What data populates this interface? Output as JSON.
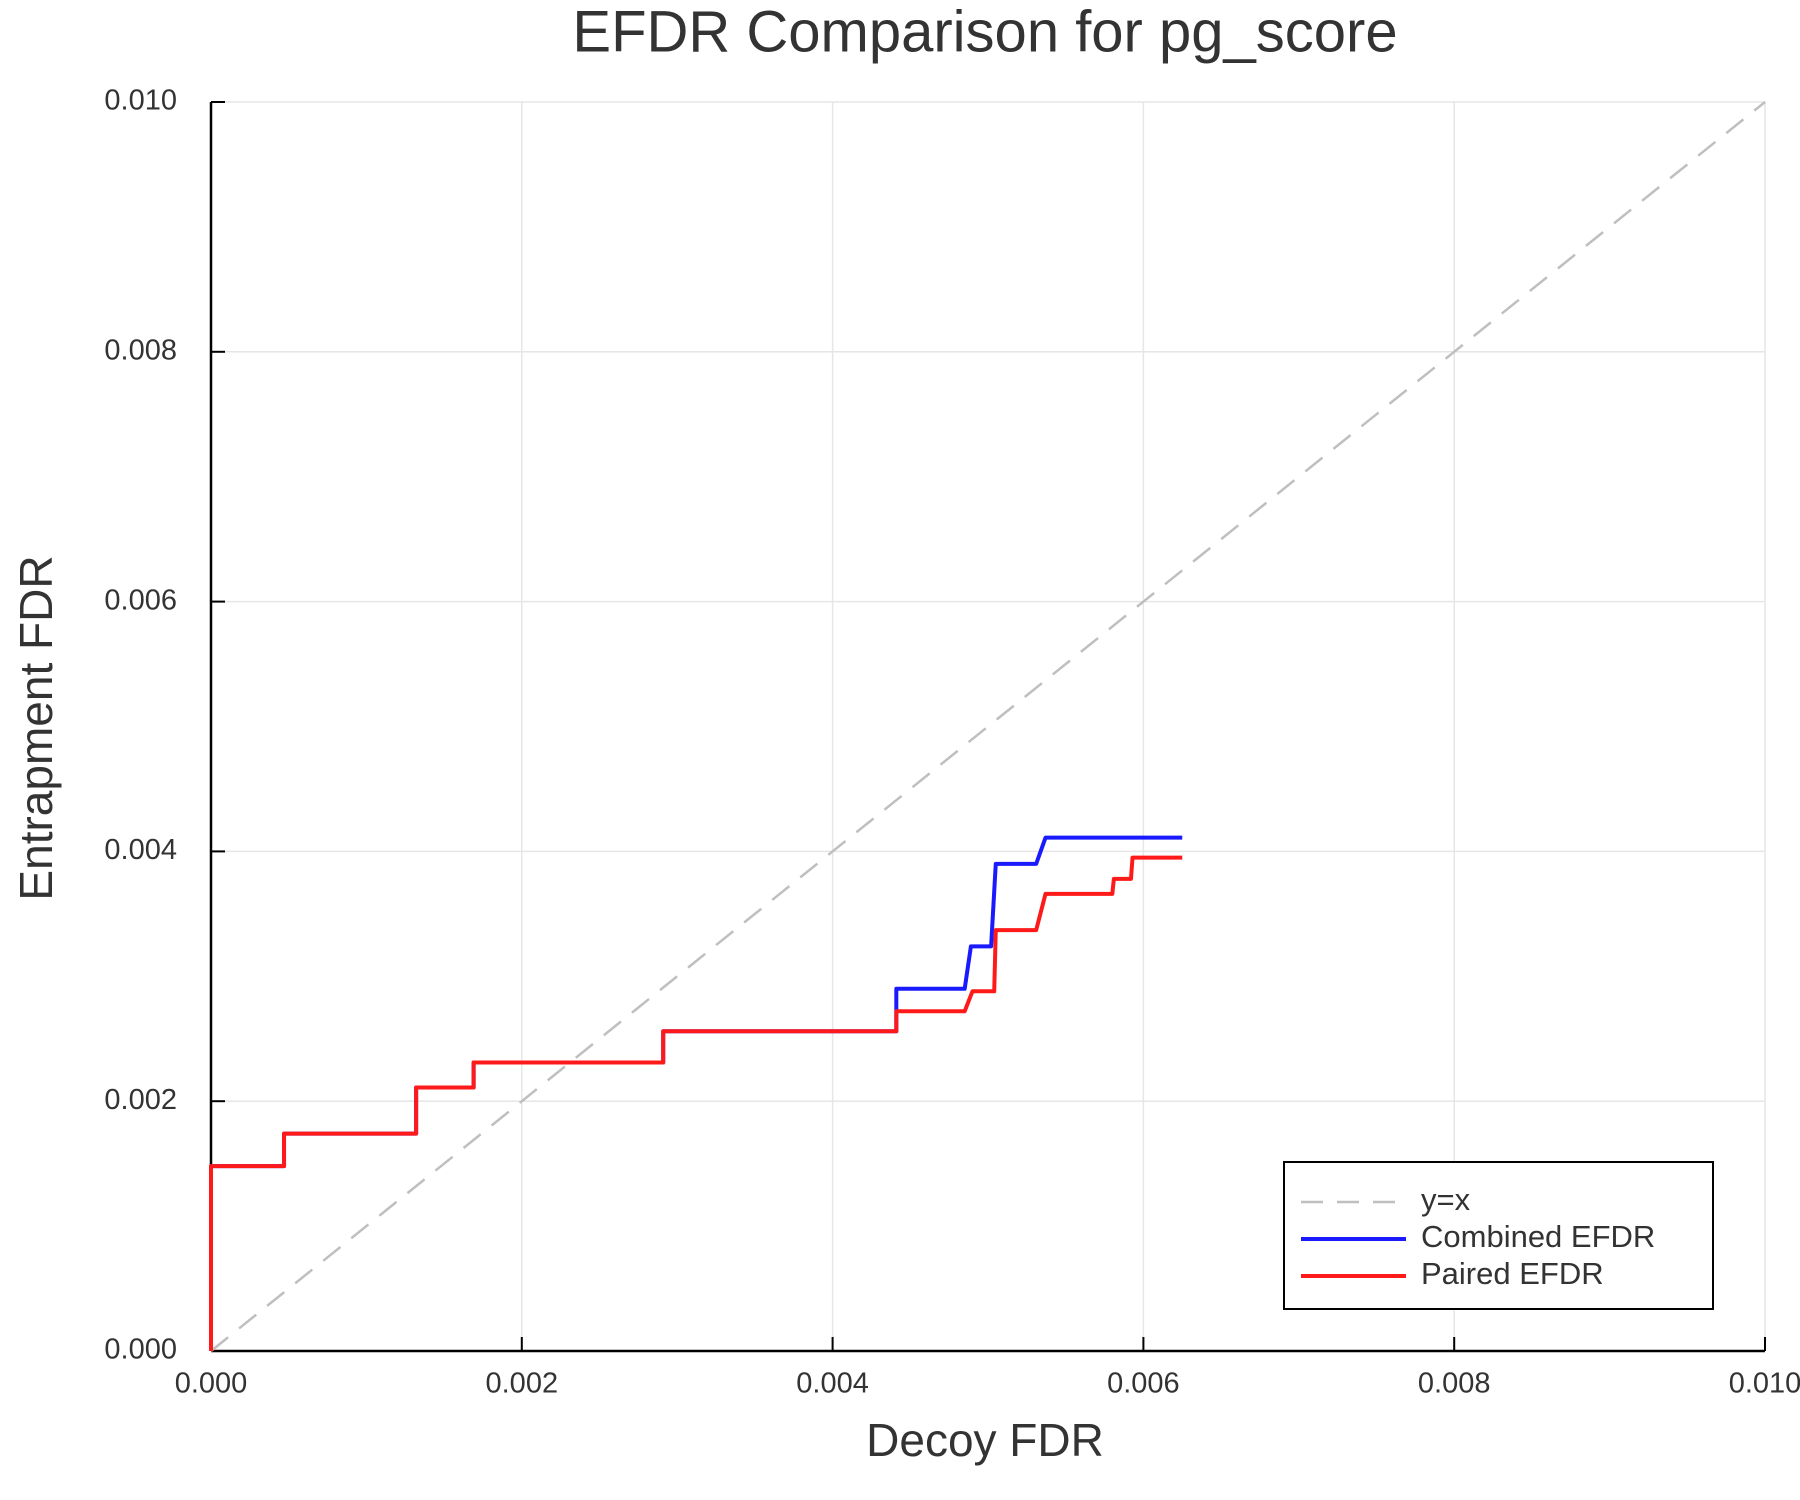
{
  "chart_data": {
    "type": "line",
    "title": "EFDR Comparison for pg_score",
    "xlabel": "Decoy FDR",
    "ylabel": "Entrapment FDR",
    "xlim": [
      0,
      0.01
    ],
    "ylim": [
      0,
      0.01
    ],
    "xticks": [
      {
        "value": 0,
        "label": "0.000"
      },
      {
        "value": 0.002,
        "label": "0.002"
      },
      {
        "value": 0.004,
        "label": "0.004"
      },
      {
        "value": 0.006,
        "label": "0.006"
      },
      {
        "value": 0.008,
        "label": "0.008"
      },
      {
        "value": 0.01,
        "label": "0.010"
      }
    ],
    "yticks": [
      {
        "value": 0,
        "label": "0.000"
      },
      {
        "value": 0.002,
        "label": "0.002"
      },
      {
        "value": 0.004,
        "label": "0.004"
      },
      {
        "value": 0.006,
        "label": "0.006"
      },
      {
        "value": 0.008,
        "label": "0.008"
      },
      {
        "value": 0.01,
        "label": "0.010"
      }
    ],
    "grid": true,
    "legend": "lower right",
    "series": [
      {
        "name": "y=x",
        "color": "#bfbfbf",
        "linestyle": "dashed",
        "x": [
          0,
          0.01
        ],
        "values": [
          0,
          0.01
        ]
      },
      {
        "name": "Combined EFDR",
        "color": "#1a1aff",
        "linestyle": "solid",
        "x": [
          0,
          0,
          0.00047,
          0.00047,
          0.00132,
          0.00132,
          0.00169,
          0.00169,
          0.00291,
          0.00291,
          0.00441,
          0.00441,
          0.00485,
          0.00489,
          0.00502,
          0.00505,
          0.00531,
          0.00537,
          0.00625
        ],
        "values": [
          0,
          0.00148,
          0.00148,
          0.00174,
          0.00174,
          0.00211,
          0.00211,
          0.00231,
          0.00231,
          0.00256,
          0.00256,
          0.0029,
          0.0029,
          0.00324,
          0.00324,
          0.0039,
          0.0039,
          0.00411,
          0.00411
        ]
      },
      {
        "name": "Paired EFDR",
        "color": "#ff1a1a",
        "linestyle": "solid",
        "x": [
          0,
          0,
          0.00047,
          0.00047,
          0.00132,
          0.00132,
          0.00169,
          0.00169,
          0.00291,
          0.00291,
          0.00441,
          0.00441,
          0.00485,
          0.0049,
          0.00504,
          0.00505,
          0.00531,
          0.00537,
          0.0058,
          0.00581,
          0.00592,
          0.00593,
          0.00625
        ],
        "values": [
          0,
          0.00148,
          0.00148,
          0.00174,
          0.00174,
          0.00211,
          0.00211,
          0.00231,
          0.00231,
          0.00256,
          0.00256,
          0.00272,
          0.00272,
          0.00288,
          0.00288,
          0.00337,
          0.00337,
          0.00366,
          0.00366,
          0.00378,
          0.00378,
          0.00395,
          0.00395
        ]
      }
    ]
  }
}
